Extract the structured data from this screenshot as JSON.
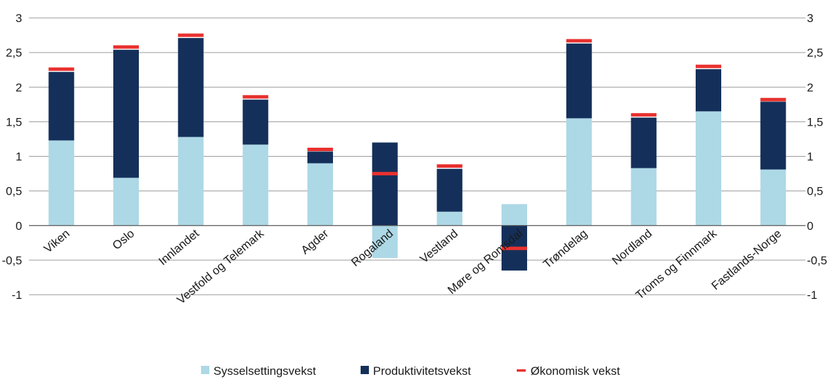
{
  "chart_data": {
    "type": "bar",
    "stacked": true,
    "categories": [
      "Viken",
      "Oslo",
      "Innlandet",
      "Vestfold og Telemark",
      "Agder",
      "Rogaland",
      "Vestland",
      "Møre og Romsdal",
      "Trøndelag",
      "Nordland",
      "Troms og Finnmark",
      "Fastlands-Norge"
    ],
    "series": [
      {
        "name": "Sysselsettingsvekst",
        "kind": "bar",
        "color": "#add8e6",
        "values": [
          1.23,
          0.69,
          1.28,
          1.17,
          0.9,
          -0.47,
          0.2,
          0.31,
          1.55,
          0.83,
          1.65,
          0.81
        ]
      },
      {
        "name": "Produktivitetsvekst",
        "kind": "bar",
        "color": "#14305a",
        "values": [
          0.99,
          1.85,
          1.43,
          0.65,
          0.17,
          1.2,
          0.62,
          -0.65,
          1.08,
          0.73,
          0.61,
          0.98
        ]
      },
      {
        "name": "Økonomisk vekst",
        "kind": "marker",
        "color": "#e8312f",
        "values": [
          2.26,
          2.58,
          2.75,
          1.86,
          1.1,
          0.75,
          0.86,
          -0.33,
          2.67,
          1.6,
          2.3,
          1.82
        ]
      }
    ],
    "yticks": [
      "3",
      "2,5",
      "2",
      "1,5",
      "1",
      "0,5",
      "0",
      "-0,5",
      "-1"
    ],
    "ylim": [
      -1,
      3
    ],
    "grid": true,
    "legend_position": "bottom"
  }
}
